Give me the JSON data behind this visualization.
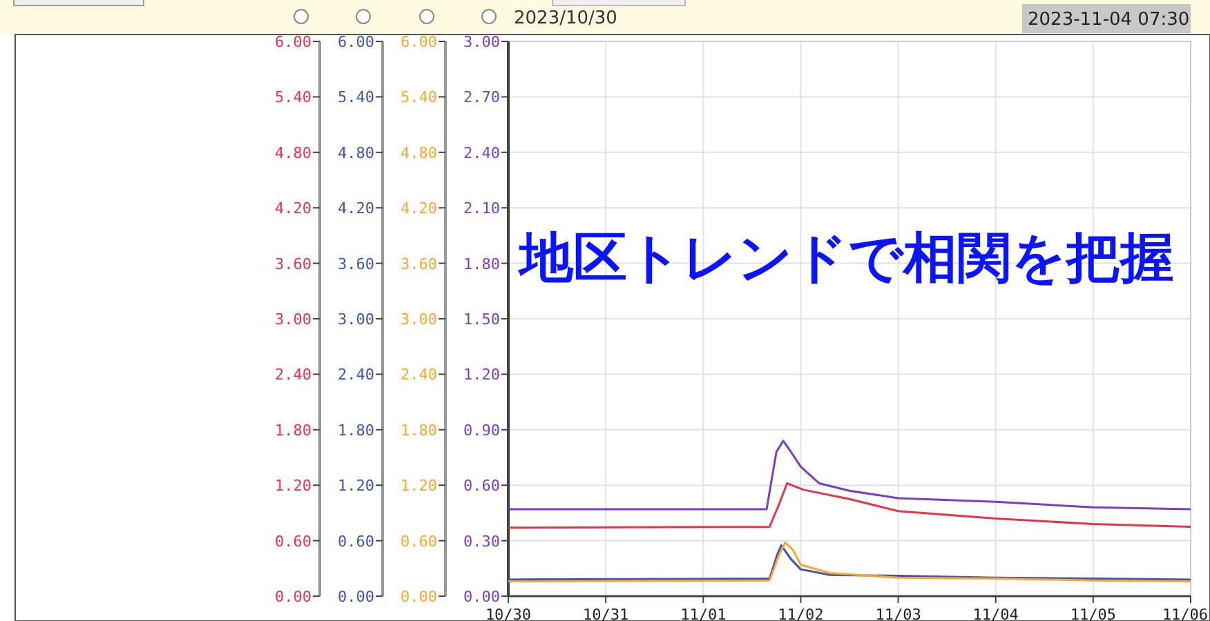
{
  "chart_data": {
    "type": "line",
    "title": "地区トレンドで相関を把握",
    "annotations": [
      "2023/10/30",
      "2023-11-04 07:30"
    ],
    "xlim": [
      "2023-10-30T00:00",
      "2023-11-06T00:00"
    ],
    "xticks": [
      {
        "value": "2023-10-30T00:00",
        "label": "10/30"
      },
      {
        "value": "2023-10-31T00:00",
        "label": "10/31"
      },
      {
        "value": "2023-11-01T00:00",
        "label": "11/01"
      },
      {
        "value": "2023-11-02T00:00",
        "label": "11/02"
      },
      {
        "value": "2023-11-03T00:00",
        "label": "11/03"
      },
      {
        "value": "2023-11-04T00:00",
        "label": "11/04"
      },
      {
        "value": "2023-11-05T00:00",
        "label": "11/05"
      },
      {
        "value": "2023-11-06T00:00",
        "label": "11/06"
      }
    ],
    "y2lim": [
      0,
      6
    ],
    "y2ticks": [
      {
        "value": 0,
        "label": "0.00"
      },
      {
        "value": 0.6,
        "label": "0.60"
      },
      {
        "value": 1.2,
        "label": "1.20"
      },
      {
        "value": 1.8,
        "label": "1.80"
      },
      {
        "value": 2.4,
        "label": "2.40"
      },
      {
        "value": 3,
        "label": "3.00"
      },
      {
        "value": 3.6,
        "label": "3.60"
      },
      {
        "value": 4.2,
        "label": "4.20"
      },
      {
        "value": 4.8,
        "label": "4.80"
      },
      {
        "value": 5.4,
        "label": "5.40"
      },
      {
        "value": 6,
        "label": "6.00"
      }
    ],
    "y3lim": [
      0,
      6
    ],
    "y3ticks": [
      {
        "value": 0,
        "label": "0.00"
      },
      {
        "value": 0.6,
        "label": "0.60"
      },
      {
        "value": 1.2,
        "label": "1.20"
      },
      {
        "value": 1.8,
        "label": "1.80"
      },
      {
        "value": 2.4,
        "label": "2.40"
      },
      {
        "value": 3,
        "label": "3.00"
      },
      {
        "value": 3.6,
        "label": "3.60"
      },
      {
        "value": 4.2,
        "label": "4.20"
      },
      {
        "value": 4.8,
        "label": "4.80"
      },
      {
        "value": 5.4,
        "label": "5.40"
      },
      {
        "value": 6,
        "label": "6.00"
      }
    ],
    "ylim": [
      0,
      3
    ],
    "yticks": [
      {
        "value": 0,
        "label": "0.00"
      },
      {
        "value": 0.3,
        "label": "0.30"
      },
      {
        "value": 0.6,
        "label": "0.60"
      },
      {
        "value": 0.9,
        "label": "0.90"
      },
      {
        "value": 1.2,
        "label": "1.20"
      },
      {
        "value": 1.5,
        "label": "1.50"
      },
      {
        "value": 1.8,
        "label": "1.80"
      },
      {
        "value": 2.1,
        "label": "2.10"
      },
      {
        "value": 2.4,
        "label": "2.40"
      },
      {
        "value": 2.7,
        "label": "2.70"
      },
      {
        "value": 3,
        "label": "3.00"
      }
    ],
    "grid": true,
    "series": [
      {
        "color": "#e8334a",
        "axis": "y2",
        "x": [
          "2023-10-30T00:00",
          "2023-11-01T16:19",
          "2023-11-01T18:43",
          "2023-11-01T20:38",
          "2023-11-02T00:43",
          "2023-11-02T12:00",
          "2023-11-03T00:00",
          "2023-11-04T00:00",
          "2023-11-05T00:00",
          "2023-11-06T00:00"
        ],
        "values": [
          0.74,
          0.75,
          1.0,
          1.22,
          1.15,
          1.05,
          0.92,
          0.84,
          0.78,
          0.75
        ]
      },
      {
        "color": "#3a55b4",
        "axis": "y3",
        "x": [
          "2023-10-30T00:00",
          "2023-11-01T16:19",
          "2023-11-01T18:14",
          "2023-11-01T19:12",
          "2023-11-01T21:36",
          "2023-11-02T00:00",
          "2023-11-02T07:12",
          "2023-11-03T00:00",
          "2023-11-04T00:00",
          "2023-11-05T00:00",
          "2023-11-06T00:00"
        ],
        "values": [
          0.18,
          0.19,
          0.45,
          0.55,
          0.4,
          0.29,
          0.23,
          0.22,
          0.2,
          0.19,
          0.18
        ]
      },
      {
        "color": "#ffa531",
        "axis": "y3",
        "x": [
          "2023-10-30T00:00",
          "2023-11-01T16:19",
          "2023-11-01T18:43",
          "2023-11-01T20:10",
          "2023-11-01T22:05",
          "2023-11-02T00:00",
          "2023-11-02T07:12",
          "2023-11-03T00:00",
          "2023-11-04T00:00",
          "2023-11-05T00:00",
          "2023-11-06T00:00"
        ],
        "values": [
          0.16,
          0.17,
          0.45,
          0.58,
          0.5,
          0.34,
          0.25,
          0.2,
          0.19,
          0.17,
          0.16
        ]
      },
      {
        "color": "#7a3fbf",
        "x": [
          "2023-10-30T00:00",
          "2023-11-01T15:36",
          "2023-11-01T18:00",
          "2023-11-01T19:41",
          "2023-11-01T21:36",
          "2023-11-02T00:00",
          "2023-11-02T04:34",
          "2023-11-02T12:00",
          "2023-11-03T00:00",
          "2023-11-04T00:00",
          "2023-11-05T00:00",
          "2023-11-06T00:00"
        ],
        "values": [
          0.47,
          0.47,
          0.78,
          0.84,
          0.78,
          0.7,
          0.61,
          0.57,
          0.53,
          0.51,
          0.48,
          0.47
        ]
      }
    ]
  }
}
